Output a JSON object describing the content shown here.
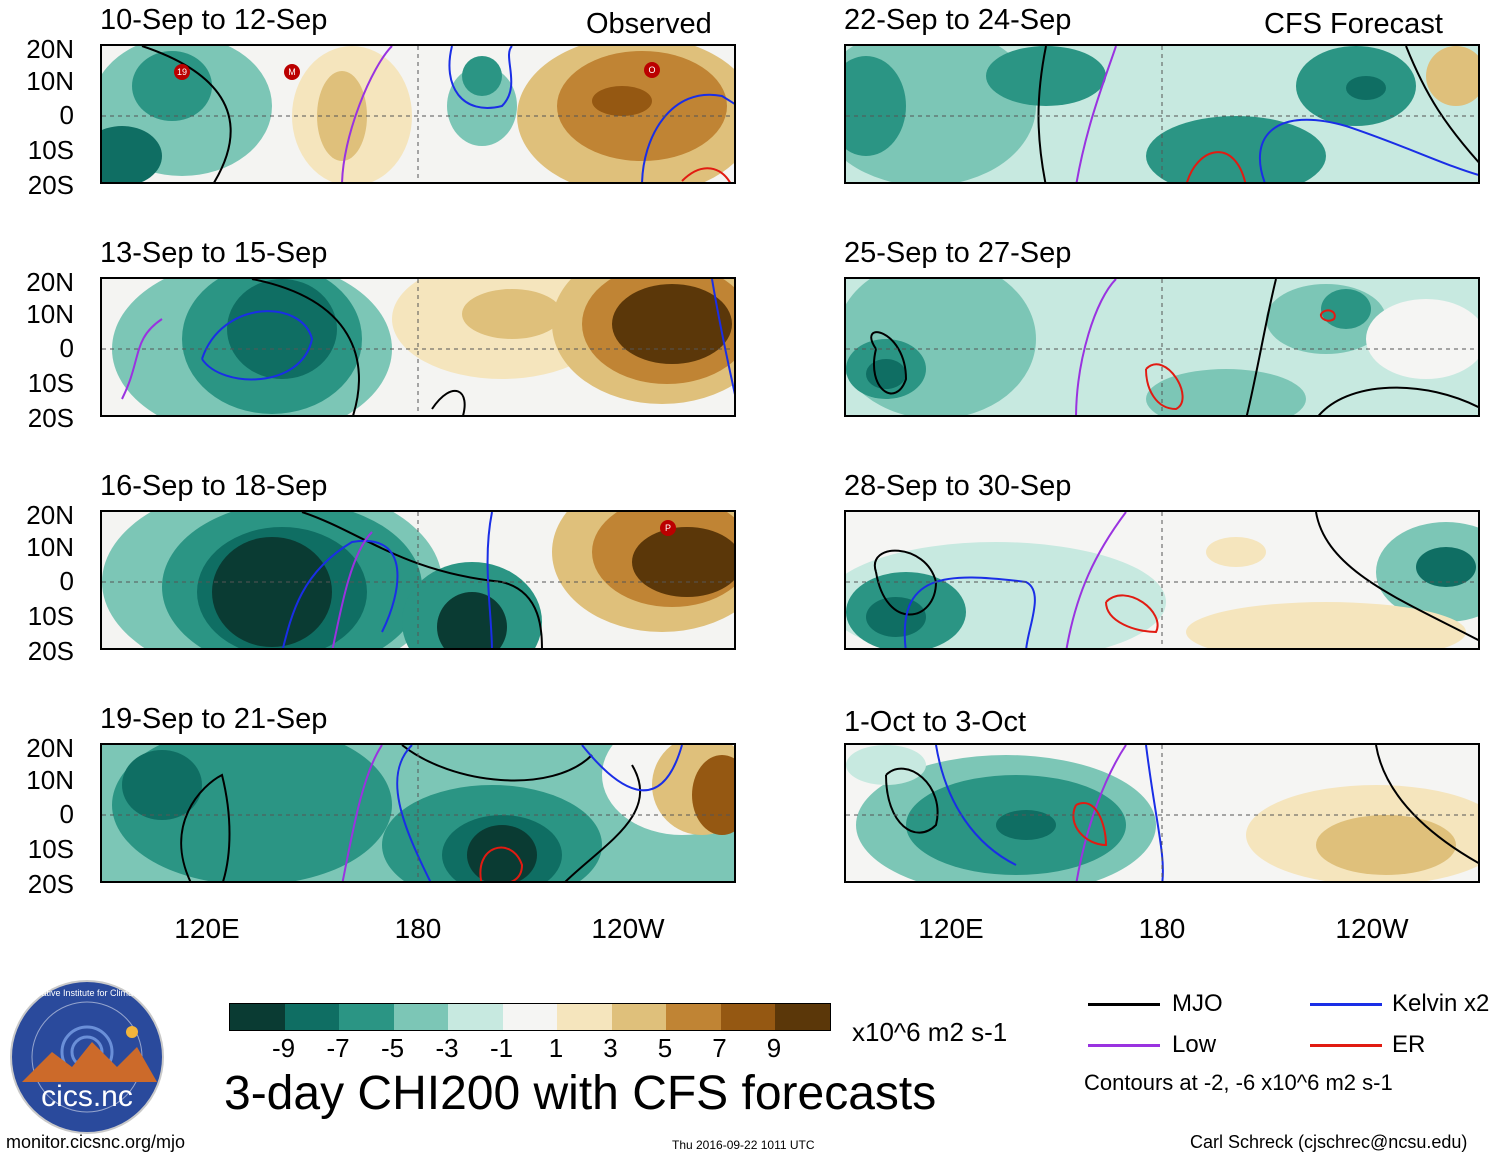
{
  "header": {
    "observed_label": "Observed",
    "forecast_label": "CFS Forecast"
  },
  "panels_left": [
    {
      "title": "10-Sep to 12-Sep"
    },
    {
      "title": "13-Sep to 15-Sep"
    },
    {
      "title": "16-Sep to 18-Sep"
    },
    {
      "title": "19-Sep to 21-Sep"
    }
  ],
  "panels_right": [
    {
      "title": "22-Sep to 24-Sep"
    },
    {
      "title": "25-Sep to 27-Sep"
    },
    {
      "title": "28-Sep to 30-Sep"
    },
    {
      "title": "1-Oct to 3-Oct"
    }
  ],
  "axes": {
    "lat_labels": [
      "20N",
      "10N",
      "0",
      "10S",
      "20S"
    ],
    "lon_labels": [
      "120E",
      "180",
      "120W"
    ]
  },
  "storm_markers": [
    "19",
    "M",
    "O",
    "P"
  ],
  "colorbar": {
    "colors": [
      "#0a3b33",
      "#0f6e63",
      "#2b9584",
      "#7cc6b6",
      "#c7e9e0",
      "#f5f5f3",
      "#f5e5bd",
      "#dfc07b",
      "#c08434",
      "#955812",
      "#5b3709"
    ],
    "tick_labels": [
      "-9",
      "-7",
      "-5",
      "-3",
      "-1",
      "1",
      "3",
      "5",
      "7",
      "9"
    ],
    "units": "x10^6 m2 s-1"
  },
  "main_title": "3-day CHI200 with CFS forecasts",
  "legend": {
    "items": [
      {
        "label": "MJO",
        "color": "#000000"
      },
      {
        "label": "Kelvin x2",
        "color": "#1a2ee6"
      },
      {
        "label": "Low",
        "color": "#9a33e0"
      },
      {
        "label": "ER",
        "color": "#e11b12"
      }
    ],
    "contours_note": "Contours at -2, -6 x10^6 m2 s-1"
  },
  "footer": {
    "url": "monitor.cicsnc.org/mjo",
    "timestamp": "Thu 2016-09-22 1011 UTC",
    "author": "Carl Schreck (cjschrec@ncsu.edu)"
  },
  "logo": {
    "text": "cics.nc",
    "ring_text": "Cooperative Institute for Climate and Satellites"
  }
}
